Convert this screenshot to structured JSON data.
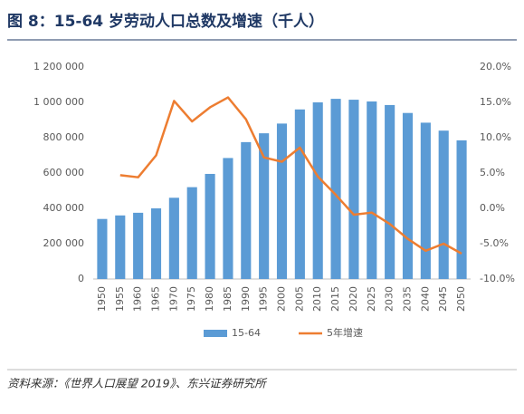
{
  "chart_data": {
    "type": "bar_line",
    "title": "图 8：15-64 岁劳动人口总数及增速（千人）",
    "source": "资料来源：《世界人口展望 2019》、东兴证券研究所",
    "categories": [
      "1950",
      "1955",
      "1960",
      "1965",
      "1970",
      "1975",
      "1980",
      "1985",
      "1990",
      "1995",
      "2000",
      "2005",
      "2010",
      "2015",
      "2020",
      "2025",
      "2030",
      "2035",
      "2040",
      "2045",
      "2050"
    ],
    "series": [
      {
        "name": "15-64",
        "type": "bar",
        "color": "#5b9bd5",
        "values": [
          340000,
          360000,
          375000,
          400000,
          460000,
          520000,
          595000,
          685000,
          775000,
          825000,
          880000,
          960000,
          1000000,
          1020000,
          1015000,
          1005000,
          985000,
          940000,
          885000,
          840000,
          785000
        ]
      },
      {
        "name": "5年增速",
        "type": "line",
        "axis": "y2",
        "color": "#ed7d31",
        "values": [
          null,
          4.7,
          4.4,
          7.5,
          15.2,
          12.3,
          14.3,
          15.7,
          12.6,
          7.2,
          6.6,
          8.6,
          4.5,
          1.9,
          -0.9,
          -0.6,
          -2.2,
          -4.3,
          -6.0,
          -5.0,
          -6.4
        ]
      }
    ],
    "ylim": [
      0,
      1200000
    ],
    "yticks": [
      0,
      {
        "value": 200000,
        "label": "200 000"
      },
      {
        "value": 400000,
        "label": "400 000"
      },
      {
        "value": 600000,
        "label": "600 000"
      },
      {
        "value": 800000,
        "label": "800 000"
      },
      {
        "value": 1000000,
        "label": "1 000 000"
      },
      {
        "value": 1200000,
        "label": "1 200 000"
      }
    ],
    "y2lim": [
      -10,
      20
    ],
    "y2ticks": [
      {
        "value": -10,
        "label": "-10.0%"
      },
      {
        "value": -5,
        "label": "-5.0%"
      },
      {
        "value": 0,
        "label": "0.0%"
      },
      {
        "value": 5,
        "label": "5.0%"
      },
      {
        "value": 10,
        "label": "10.0%"
      },
      {
        "value": 15,
        "label": "15.0%"
      },
      {
        "value": 20,
        "label": "20.0%"
      }
    ],
    "grid": false,
    "legend": "bottom"
  }
}
